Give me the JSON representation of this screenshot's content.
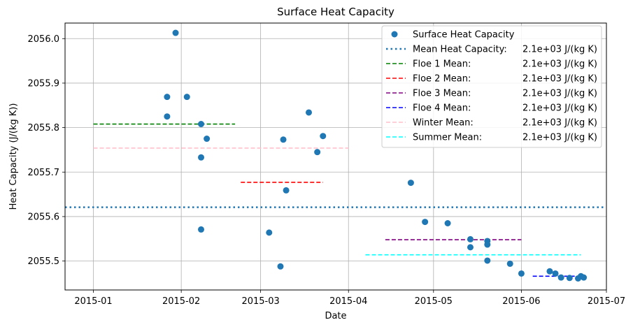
{
  "chart_data": {
    "type": "scatter",
    "title": "Surface Heat Capacity",
    "xlabel": "Date",
    "ylabel": "Heat Capacity (J/(kg K))",
    "xlim": [
      "2014-12-22",
      "2015-07-01"
    ],
    "ylim": [
      2055.435,
      2056.035
    ],
    "x_ticks": [
      "2015-01",
      "2015-02",
      "2015-03",
      "2015-04",
      "2015-05",
      "2015-06",
      "2015-07"
    ],
    "y_ticks": [
      2055.5,
      2055.6,
      2055.7,
      2055.8,
      2055.9,
      2056.0
    ],
    "y_tick_labels": [
      "2055.5",
      "2055.6",
      "2055.7",
      "2055.8",
      "2055.9",
      "2056.0"
    ],
    "grid": true,
    "legend_position": "top-right",
    "series": [
      {
        "name": "Surface Heat Capacity",
        "kind": "points",
        "color": "#1f77b4",
        "points": [
          {
            "x": "2015-01-27",
            "y": 2055.869
          },
          {
            "x": "2015-01-27",
            "y": 2055.825
          },
          {
            "x": "2015-01-30",
            "y": 2056.013
          },
          {
            "x": "2015-02-03",
            "y": 2055.869
          },
          {
            "x": "2015-02-08",
            "y": 2055.808
          },
          {
            "x": "2015-02-08",
            "y": 2055.733
          },
          {
            "x": "2015-02-08",
            "y": 2055.571
          },
          {
            "x": "2015-02-10",
            "y": 2055.775
          },
          {
            "x": "2015-03-04",
            "y": 2055.564
          },
          {
            "x": "2015-03-08",
            "y": 2055.488
          },
          {
            "x": "2015-03-09",
            "y": 2055.773
          },
          {
            "x": "2015-03-10",
            "y": 2055.659
          },
          {
            "x": "2015-03-18",
            "y": 2055.834
          },
          {
            "x": "2015-03-21",
            "y": 2055.745
          },
          {
            "x": "2015-03-23",
            "y": 2055.781
          },
          {
            "x": "2015-04-23",
            "y": 2055.676
          },
          {
            "x": "2015-04-28",
            "y": 2055.588
          },
          {
            "x": "2015-05-06",
            "y": 2055.585
          },
          {
            "x": "2015-05-14",
            "y": 2055.549
          },
          {
            "x": "2015-05-14",
            "y": 2055.531
          },
          {
            "x": "2015-05-20",
            "y": 2055.545
          },
          {
            "x": "2015-05-20",
            "y": 2055.537
          },
          {
            "x": "2015-05-20",
            "y": 2055.501
          },
          {
            "x": "2015-05-28",
            "y": 2055.494
          },
          {
            "x": "2015-06-01",
            "y": 2055.472
          },
          {
            "x": "2015-06-11",
            "y": 2055.477
          },
          {
            "x": "2015-06-13",
            "y": 2055.472
          },
          {
            "x": "2015-06-15",
            "y": 2055.463
          },
          {
            "x": "2015-06-18",
            "y": 2055.462
          },
          {
            "x": "2015-06-21",
            "y": 2055.461
          },
          {
            "x": "2015-06-22",
            "y": 2055.466
          },
          {
            "x": "2015-06-23",
            "y": 2055.463
          }
        ]
      },
      {
        "name": "Mean Heat Capacity:",
        "value_text": "2.1e+03 J/(kg K)",
        "kind": "hline",
        "style": "dotted",
        "color": "#1f77b4",
        "y": 2055.621,
        "x_start": "2014-12-22",
        "x_end": "2015-07-01"
      },
      {
        "name": "Floe 1 Mean:",
        "value_text": "2.1e+03 J/(kg K)",
        "kind": "hline",
        "style": "dashed",
        "color": "#008000",
        "y": 2055.808,
        "x_start": "2015-01-01",
        "x_end": "2015-02-20"
      },
      {
        "name": "Floe 2 Mean:",
        "value_text": "2.1e+03 J/(kg K)",
        "kind": "hline",
        "style": "dashed",
        "color": "#ff0000",
        "y": 2055.677,
        "x_start": "2015-02-22",
        "x_end": "2015-03-23"
      },
      {
        "name": "Floe 3 Mean:",
        "value_text": "2.1e+03 J/(kg K)",
        "kind": "hline",
        "style": "dashed",
        "color": "#800080",
        "y": 2055.548,
        "x_start": "2015-04-14",
        "x_end": "2015-06-01"
      },
      {
        "name": "Floe 4 Mean:",
        "value_text": "2.1e+03 J/(kg K)",
        "kind": "hline",
        "style": "dashed",
        "color": "#0000ff",
        "y": 2055.466,
        "x_start": "2015-06-05",
        "x_end": "2015-06-22"
      },
      {
        "name": "Winter Mean:",
        "value_text": "2.1e+03 J/(kg K)",
        "kind": "hline",
        "style": "dashed",
        "color": "#ffc0cb",
        "y": 2055.754,
        "x_start": "2015-01-01",
        "x_end": "2015-04-01"
      },
      {
        "name": "Summer Mean:",
        "value_text": "2.1e+03 J/(kg K)",
        "kind": "hline",
        "style": "dashed",
        "color": "#00ffff",
        "y": 2055.514,
        "x_start": "2015-04-07",
        "x_end": "2015-06-22"
      }
    ]
  }
}
